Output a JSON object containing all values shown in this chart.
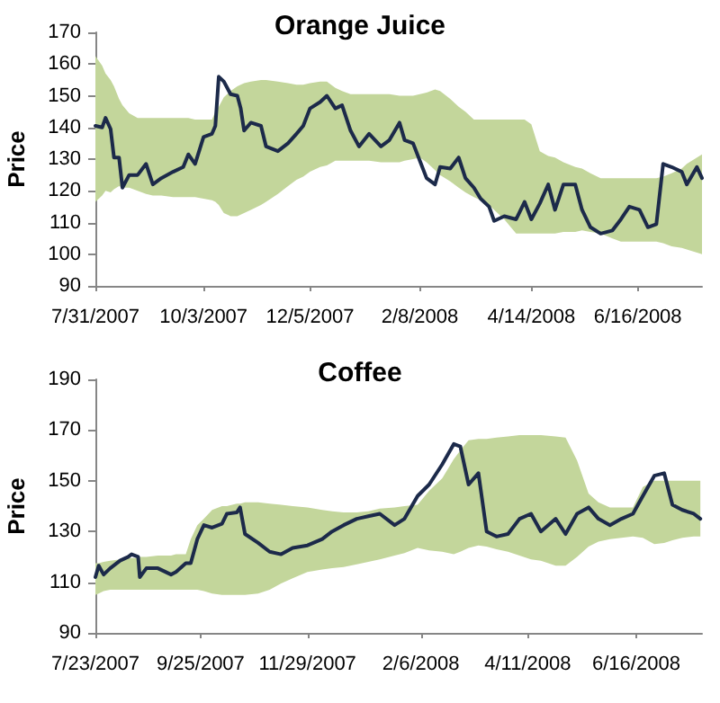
{
  "chart_data": [
    {
      "type": "line",
      "title": "Orange Juice",
      "ylabel": "Price",
      "xlim": [
        "2007-07-31",
        "2008-07-24"
      ],
      "ylim": [
        90,
        170
      ],
      "yticks": [
        90,
        100,
        110,
        120,
        130,
        140,
        150,
        160,
        170
      ],
      "xticks": [
        {
          "value": "2007-07-31",
          "label": "7/31/2007"
        },
        {
          "value": "2007-10-03",
          "label": "10/3/2007"
        },
        {
          "value": "2007-12-05",
          "label": "12/5/2007"
        },
        {
          "value": "2008-02-08",
          "label": "2/8/2008"
        },
        {
          "value": "2008-04-14",
          "label": "4/14/2008"
        },
        {
          "value": "2008-06-16",
          "label": "6/16/2008"
        }
      ],
      "grid": false,
      "marker": "none",
      "line_style": "solid",
      "series": [
        {
          "color": "#1c2a4a",
          "x": [
            "2007-07-31",
            "2007-08-04",
            "2007-08-06",
            "2007-08-09",
            "2007-08-11",
            "2007-08-14",
            "2007-08-16",
            "2007-08-20",
            "2007-08-25",
            "2007-08-30",
            "2007-09-03",
            "2007-09-08",
            "2007-09-15",
            "2007-09-21",
            "2007-09-24",
            "2007-09-28",
            "2007-10-03",
            "2007-10-08",
            "2007-10-10",
            "2007-10-12",
            "2007-10-15",
            "2007-10-19",
            "2007-10-23",
            "2007-10-25",
            "2007-10-27",
            "2007-10-31",
            "2007-11-06",
            "2007-11-09",
            "2007-11-16",
            "2007-11-22",
            "2007-11-27",
            "2007-12-01",
            "2007-12-05",
            "2007-12-11",
            "2007-12-15",
            "2007-12-20",
            "2007-12-24",
            "2007-12-29",
            "2008-01-03",
            "2008-01-09",
            "2008-01-16",
            "2008-01-21",
            "2008-01-27",
            "2008-01-30",
            "2008-02-04",
            "2008-02-08",
            "2008-02-12",
            "2008-02-17",
            "2008-02-20",
            "2008-02-26",
            "2008-03-02",
            "2008-03-06",
            "2008-03-11",
            "2008-03-15",
            "2008-03-20",
            "2008-03-23",
            "2008-03-29",
            "2008-04-05",
            "2008-04-10",
            "2008-04-14",
            "2008-04-19",
            "2008-04-24",
            "2008-04-28",
            "2008-05-03",
            "2008-05-10",
            "2008-05-14",
            "2008-05-19",
            "2008-05-25",
            "2008-06-01",
            "2008-06-06",
            "2008-06-11",
            "2008-06-17",
            "2008-06-22",
            "2008-06-27",
            "2008-07-01",
            "2008-07-06",
            "2008-07-12",
            "2008-07-15",
            "2008-07-21",
            "2008-07-24"
          ],
          "values": [
            140.5,
            140,
            143,
            139.5,
            130.5,
            130.5,
            121,
            125,
            125,
            128.5,
            122,
            124,
            126,
            127.5,
            131.5,
            128.5,
            137,
            138,
            140.5,
            156,
            154.5,
            150.5,
            150,
            146,
            139,
            141.5,
            140.5,
            134,
            132.5,
            135,
            138,
            140.5,
            146,
            148,
            150,
            146,
            147,
            139,
            134,
            138,
            134,
            136,
            141.5,
            136,
            135,
            129.5,
            124,
            122,
            127.5,
            127,
            130.5,
            124,
            121,
            117.5,
            115,
            110.5,
            112,
            111,
            116.5,
            111,
            116,
            122,
            114,
            122,
            122,
            114,
            108.5,
            106.5,
            107.5,
            111,
            115,
            114,
            108.5,
            109.5,
            128.5,
            127.5,
            126,
            122,
            127.5,
            124
          ],
          "upper": [
            162.5,
            159.5,
            157,
            155,
            153,
            149,
            147,
            144.5,
            143,
            143,
            143,
            143,
            143,
            143,
            143,
            142.5,
            142.5,
            142.5,
            145,
            146.5,
            149.5,
            151.5,
            153,
            153.5,
            154,
            154.5,
            155,
            155,
            154.5,
            154,
            153.5,
            153.5,
            154,
            154.5,
            154.5,
            152.5,
            151.5,
            150.5,
            150.5,
            150.5,
            150.5,
            150.5,
            150,
            150,
            150,
            150.5,
            151,
            152,
            151.5,
            149,
            146.5,
            145,
            142.5,
            142.5,
            142.5,
            142.5,
            142.5,
            142.5,
            142.5,
            141,
            132.5,
            131,
            130.5,
            129,
            127.5,
            127,
            125.5,
            124,
            124,
            124,
            124,
            124,
            124,
            124,
            124.5,
            125.5,
            127,
            128.5,
            130.5,
            131.5
          ],
          "lower": [
            116.5,
            118.5,
            120,
            119.5,
            120.5,
            121.5,
            121,
            121,
            120,
            119,
            118.5,
            118.5,
            118,
            118,
            118,
            118,
            117.5,
            117,
            116.5,
            115.5,
            113,
            112,
            112,
            112.5,
            113,
            114,
            115.5,
            116.5,
            119,
            121.5,
            123.5,
            124.5,
            126,
            127.5,
            128,
            129.5,
            129.5,
            129.5,
            129.5,
            129.5,
            129,
            129,
            129,
            129.5,
            130,
            130.5,
            129,
            126.5,
            125,
            123,
            121,
            119.5,
            118,
            117,
            115.5,
            114,
            111,
            106.5,
            106.5,
            106.5,
            106.5,
            106.5,
            106.5,
            107,
            107,
            107.5,
            107,
            106.5,
            105,
            104,
            104,
            104,
            104,
            104,
            103.5,
            102.5,
            102,
            101.5,
            100.5,
            100
          ]
        }
      ]
    },
    {
      "type": "line",
      "title": "Coffee",
      "ylabel": "Price",
      "xlim": [
        "2007-07-23",
        "2008-07-26"
      ],
      "ylim": [
        90,
        190
      ],
      "yticks": [
        90,
        110,
        130,
        150,
        170,
        190
      ],
      "xticks": [
        {
          "value": "2007-07-23",
          "label": "7/23/2007"
        },
        {
          "value": "2007-09-25",
          "label": "9/25/2007"
        },
        {
          "value": "2007-11-29",
          "label": "11/29/2007"
        },
        {
          "value": "2008-02-06",
          "label": "2/6/2008"
        },
        {
          "value": "2008-04-11",
          "label": "4/11/2008"
        },
        {
          "value": "2008-06-16",
          "label": "6/16/2008"
        }
      ],
      "grid": false,
      "marker": "none",
      "line_style": "solid",
      "series": [
        {
          "color": "#1c2a4a",
          "x": [
            "2007-07-23",
            "2007-07-25",
            "2007-07-28",
            "2007-08-01",
            "2007-08-07",
            "2007-08-12",
            "2007-08-14",
            "2007-08-18",
            "2007-08-19",
            "2007-08-23",
            "2007-08-30",
            "2007-09-07",
            "2007-09-10",
            "2007-09-16",
            "2007-09-19",
            "2007-09-23",
            "2007-09-27",
            "2007-10-02",
            "2007-10-08",
            "2007-10-11",
            "2007-10-17",
            "2007-10-19",
            "2007-10-22",
            "2007-10-30",
            "2007-11-06",
            "2007-11-13",
            "2007-11-20",
            "2007-11-29",
            "2007-12-08",
            "2007-12-14",
            "2007-12-21",
            "2007-12-29",
            "2008-01-05",
            "2008-01-12",
            "2008-01-21",
            "2008-01-27",
            "2008-02-04",
            "2008-02-11",
            "2008-02-19",
            "2008-02-26",
            "2008-03-01",
            "2008-03-06",
            "2008-03-12",
            "2008-03-17",
            "2008-03-23",
            "2008-03-30",
            "2008-04-06",
            "2008-04-13",
            "2008-04-19",
            "2008-04-28",
            "2008-05-04",
            "2008-05-11",
            "2008-05-18",
            "2008-05-24",
            "2008-05-31",
            "2008-06-07",
            "2008-06-14",
            "2008-06-20",
            "2008-06-27",
            "2008-07-03",
            "2008-07-08",
            "2008-07-14",
            "2008-07-21",
            "2008-07-25"
          ],
          "values": [
            112,
            116.5,
            113,
            115.5,
            118.5,
            120,
            121,
            120,
            112,
            115.5,
            115.5,
            113,
            114,
            117.5,
            117.5,
            127,
            132.5,
            131.5,
            133,
            137,
            137.5,
            139.5,
            129,
            125.5,
            122,
            121,
            123.5,
            124.5,
            127,
            130,
            132.5,
            135,
            136,
            137,
            132.5,
            135,
            144,
            148.5,
            156.5,
            164.5,
            163.5,
            148.5,
            153,
            130,
            128,
            129,
            135,
            137,
            130,
            135,
            129,
            137,
            139.5,
            135,
            132.5,
            135,
            137,
            144,
            152,
            153,
            140.5,
            138.5,
            137,
            135
          ],
          "upper": [
            117.5,
            117.5,
            118,
            118.5,
            119,
            119.5,
            119.5,
            119.5,
            120,
            120,
            120.5,
            120.5,
            121,
            121,
            127,
            132.5,
            135,
            138.5,
            140,
            140,
            141,
            141,
            141.5,
            141.5,
            141,
            140.5,
            140,
            139.5,
            138.5,
            138,
            137.5,
            137.5,
            138,
            139,
            139.5,
            140,
            140.5,
            146,
            151,
            158.5,
            162,
            166,
            166.5,
            166.5,
            167,
            167.5,
            168,
            168,
            168,
            167.5,
            167,
            158,
            145,
            141.5,
            139.5,
            139.5,
            139.5,
            147.5,
            150,
            150,
            150,
            150,
            150,
            150
          ],
          "lower": [
            105,
            105.5,
            106.5,
            107,
            107,
            107,
            107,
            107,
            107,
            107,
            107,
            107,
            107,
            107,
            107,
            107,
            106.5,
            105.5,
            105,
            105,
            105,
            105,
            105,
            105.5,
            107,
            109.5,
            111.5,
            114,
            115,
            115.5,
            116,
            117,
            118,
            119,
            120.5,
            121.5,
            123.5,
            122.5,
            122,
            121,
            122,
            123.5,
            124.5,
            124,
            123,
            122,
            120.5,
            119,
            118.5,
            116.5,
            116.5,
            120,
            124,
            126,
            127,
            127.5,
            128,
            127.5,
            125,
            125.5,
            126.5,
            127.5,
            128,
            128
          ]
        }
      ]
    }
  ]
}
